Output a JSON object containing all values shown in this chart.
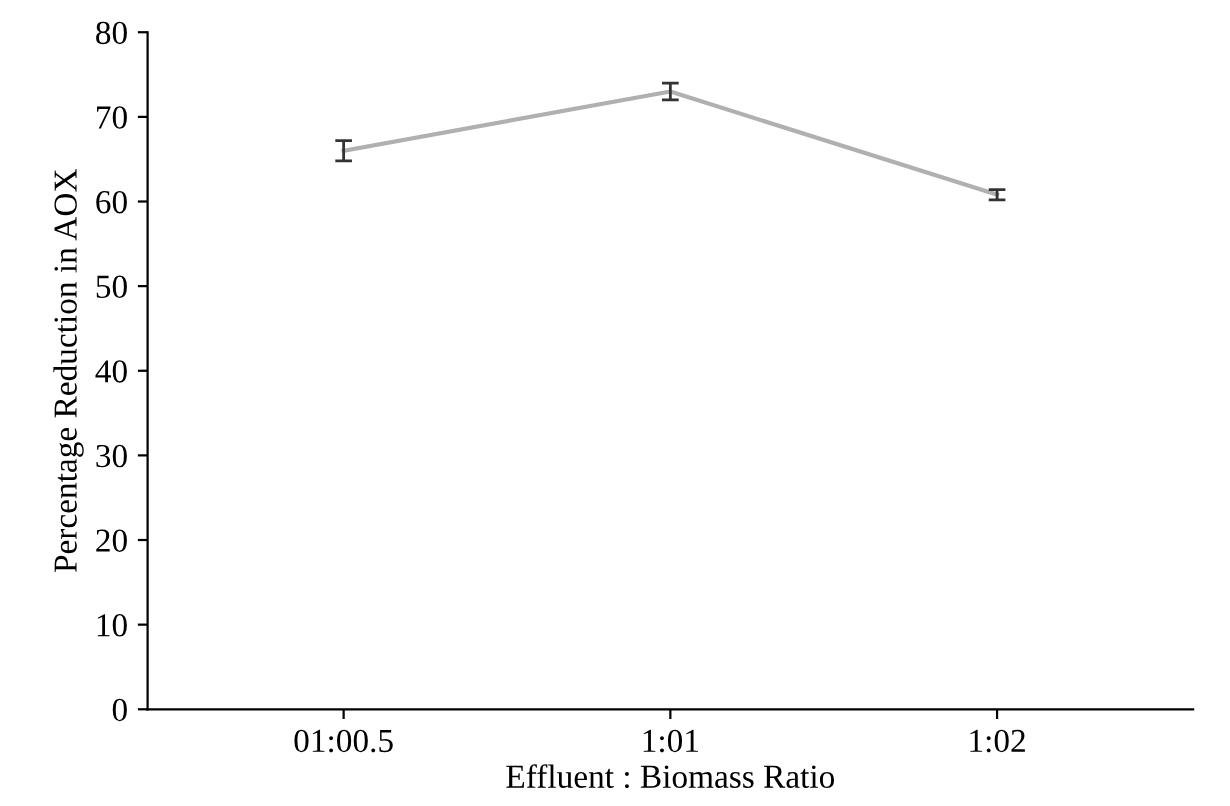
{
  "chart_data": {
    "type": "line",
    "xlabel": "Effluent : Biomass Ratio",
    "ylabel": "Percentage Reduction in AOX",
    "categories": [
      "01:00.5",
      "1:01",
      "1:02"
    ],
    "series": [
      {
        "color": "#b0b0b0",
        "values": [
          66,
          73,
          60.8
        ],
        "errors": [
          1.2,
          1,
          0.6
        ]
      }
    ],
    "ylim": [
      0,
      80
    ],
    "yticks": [
      0,
      10,
      20,
      30,
      40,
      50,
      60,
      70,
      80
    ],
    "grid": false,
    "legend": false,
    "marker": "none"
  }
}
